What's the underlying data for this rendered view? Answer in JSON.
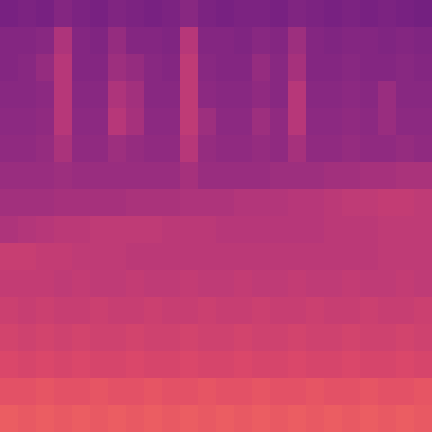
{
  "chart_data": {
    "type": "heatmap",
    "zlim": [
      0,
      1
    ],
    "tick_labels": false,
    "cells": [
      [
        0.35,
        0.36,
        0.35,
        0.38,
        0.36,
        0.35,
        0.37,
        0.36,
        0.35,
        0.36,
        0.39,
        0.36,
        0.35,
        0.36,
        0.36,
        0.35,
        0.37,
        0.36,
        0.35,
        0.36,
        0.35,
        0.36,
        0.35,
        0.34
      ],
      [
        0.38,
        0.38,
        0.39,
        0.48,
        0.38,
        0.37,
        0.42,
        0.38,
        0.38,
        0.37,
        0.5,
        0.38,
        0.38,
        0.37,
        0.39,
        0.38,
        0.44,
        0.38,
        0.37,
        0.38,
        0.38,
        0.37,
        0.38,
        0.37
      ],
      [
        0.38,
        0.39,
        0.42,
        0.5,
        0.38,
        0.38,
        0.44,
        0.42,
        0.39,
        0.38,
        0.52,
        0.39,
        0.38,
        0.38,
        0.42,
        0.39,
        0.46,
        0.38,
        0.38,
        0.39,
        0.38,
        0.38,
        0.39,
        0.38
      ],
      [
        0.39,
        0.39,
        0.4,
        0.5,
        0.39,
        0.39,
        0.48,
        0.45,
        0.39,
        0.39,
        0.52,
        0.4,
        0.39,
        0.39,
        0.41,
        0.39,
        0.5,
        0.39,
        0.39,
        0.4,
        0.39,
        0.43,
        0.39,
        0.39
      ],
      [
        0.4,
        0.4,
        0.41,
        0.5,
        0.4,
        0.4,
        0.5,
        0.46,
        0.4,
        0.4,
        0.52,
        0.44,
        0.4,
        0.4,
        0.44,
        0.41,
        0.5,
        0.4,
        0.4,
        0.41,
        0.4,
        0.43,
        0.4,
        0.4
      ],
      [
        0.41,
        0.41,
        0.42,
        0.47,
        0.41,
        0.41,
        0.44,
        0.42,
        0.41,
        0.41,
        0.5,
        0.42,
        0.41,
        0.41,
        0.42,
        0.41,
        0.46,
        0.41,
        0.41,
        0.42,
        0.41,
        0.41,
        0.42,
        0.41
      ],
      [
        0.43,
        0.43,
        0.43,
        0.44,
        0.43,
        0.43,
        0.43,
        0.43,
        0.43,
        0.43,
        0.46,
        0.43,
        0.43,
        0.43,
        0.43,
        0.44,
        0.44,
        0.44,
        0.45,
        0.45,
        0.46,
        0.46,
        0.47,
        0.47
      ],
      [
        0.45,
        0.45,
        0.45,
        0.46,
        0.46,
        0.46,
        0.46,
        0.47,
        0.47,
        0.47,
        0.48,
        0.48,
        0.48,
        0.49,
        0.49,
        0.49,
        0.5,
        0.5,
        0.51,
        0.52,
        0.52,
        0.53,
        0.53,
        0.52
      ],
      [
        0.48,
        0.49,
        0.5,
        0.51,
        0.51,
        0.52,
        0.52,
        0.52,
        0.52,
        0.51,
        0.51,
        0.51,
        0.5,
        0.5,
        0.5,
        0.5,
        0.5,
        0.5,
        0.51,
        0.51,
        0.51,
        0.52,
        0.52,
        0.52
      ],
      [
        0.54,
        0.54,
        0.53,
        0.53,
        0.52,
        0.52,
        0.52,
        0.51,
        0.51,
        0.51,
        0.51,
        0.51,
        0.51,
        0.51,
        0.51,
        0.51,
        0.51,
        0.51,
        0.51,
        0.51,
        0.51,
        0.52,
        0.52,
        0.52
      ],
      [
        0.53,
        0.53,
        0.53,
        0.52,
        0.53,
        0.52,
        0.52,
        0.53,
        0.52,
        0.52,
        0.53,
        0.52,
        0.52,
        0.53,
        0.52,
        0.52,
        0.53,
        0.52,
        0.52,
        0.53,
        0.52,
        0.52,
        0.53,
        0.52
      ],
      [
        0.55,
        0.54,
        0.55,
        0.54,
        0.54,
        0.55,
        0.54,
        0.54,
        0.55,
        0.54,
        0.54,
        0.55,
        0.54,
        0.54,
        0.55,
        0.54,
        0.54,
        0.55,
        0.54,
        0.54,
        0.55,
        0.54,
        0.54,
        0.55
      ],
      [
        0.57,
        0.56,
        0.57,
        0.56,
        0.57,
        0.56,
        0.56,
        0.57,
        0.56,
        0.56,
        0.57,
        0.56,
        0.56,
        0.57,
        0.56,
        0.56,
        0.57,
        0.56,
        0.56,
        0.57,
        0.56,
        0.56,
        0.57,
        0.56
      ],
      [
        0.59,
        0.58,
        0.59,
        0.58,
        0.59,
        0.58,
        0.58,
        0.59,
        0.58,
        0.58,
        0.59,
        0.58,
        0.58,
        0.59,
        0.58,
        0.58,
        0.59,
        0.58,
        0.58,
        0.59,
        0.58,
        0.58,
        0.59,
        0.58
      ],
      [
        0.62,
        0.62,
        0.63,
        0.62,
        0.62,
        0.63,
        0.62,
        0.62,
        0.63,
        0.62,
        0.62,
        0.63,
        0.62,
        0.62,
        0.63,
        0.62,
        0.62,
        0.63,
        0.62,
        0.62,
        0.63,
        0.62,
        0.62,
        0.63
      ],
      [
        0.65,
        0.64,
        0.65,
        0.64,
        0.65,
        0.64,
        0.65,
        0.64,
        0.65,
        0.64,
        0.65,
        0.64,
        0.65,
        0.64,
        0.65,
        0.64,
        0.65,
        0.64,
        0.65,
        0.64,
        0.65,
        0.64,
        0.65,
        0.64
      ]
    ]
  }
}
